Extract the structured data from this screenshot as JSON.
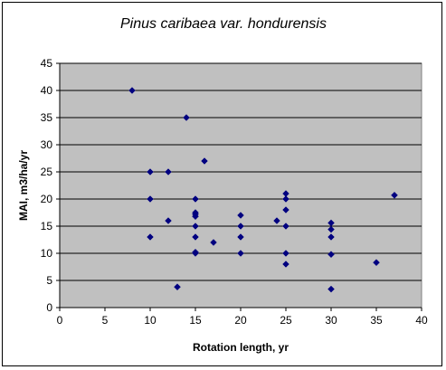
{
  "chart_data": {
    "type": "scatter",
    "title": "Pinus caribaea var. hondurensis",
    "xlabel": "Rotation length, yr",
    "ylabel": "MAI, m3/ha/yr",
    "xlim": [
      0,
      40
    ],
    "ylim": [
      0,
      45
    ],
    "x_ticks": [
      "0",
      "5",
      "10",
      "15",
      "20",
      "25",
      "30",
      "35",
      "40"
    ],
    "y_ticks": [
      "0",
      "5",
      "10",
      "15",
      "20",
      "25",
      "30",
      "35",
      "40",
      "45"
    ],
    "grid": "horizontal major gridlines",
    "legend": "none",
    "plot_background": "#c0c0c0",
    "marker_color": "#000080",
    "marker": "diamond",
    "points": [
      {
        "x": 8,
        "y": 40
      },
      {
        "x": 10,
        "y": 25
      },
      {
        "x": 10,
        "y": 20
      },
      {
        "x": 10,
        "y": 13
      },
      {
        "x": 12,
        "y": 25
      },
      {
        "x": 12,
        "y": 16
      },
      {
        "x": 13,
        "y": 3.8
      },
      {
        "x": 14,
        "y": 35
      },
      {
        "x": 15,
        "y": 20
      },
      {
        "x": 15,
        "y": 17.5
      },
      {
        "x": 15,
        "y": 17.2
      },
      {
        "x": 15,
        "y": 16.8
      },
      {
        "x": 15,
        "y": 15
      },
      {
        "x": 15,
        "y": 13
      },
      {
        "x": 15,
        "y": 10.2
      },
      {
        "x": 15,
        "y": 10
      },
      {
        "x": 16,
        "y": 27
      },
      {
        "x": 17,
        "y": 12
      },
      {
        "x": 20,
        "y": 17
      },
      {
        "x": 20,
        "y": 15
      },
      {
        "x": 20,
        "y": 13
      },
      {
        "x": 20,
        "y": 10
      },
      {
        "x": 24,
        "y": 16
      },
      {
        "x": 25,
        "y": 21
      },
      {
        "x": 25,
        "y": 20
      },
      {
        "x": 25,
        "y": 18
      },
      {
        "x": 25,
        "y": 15
      },
      {
        "x": 25,
        "y": 10
      },
      {
        "x": 25,
        "y": 8
      },
      {
        "x": 30,
        "y": 15.6
      },
      {
        "x": 30,
        "y": 14.4
      },
      {
        "x": 30,
        "y": 13
      },
      {
        "x": 30,
        "y": 9.8
      },
      {
        "x": 30,
        "y": 3.4
      },
      {
        "x": 35,
        "y": 8.3
      },
      {
        "x": 37,
        "y": 20.7
      }
    ]
  }
}
